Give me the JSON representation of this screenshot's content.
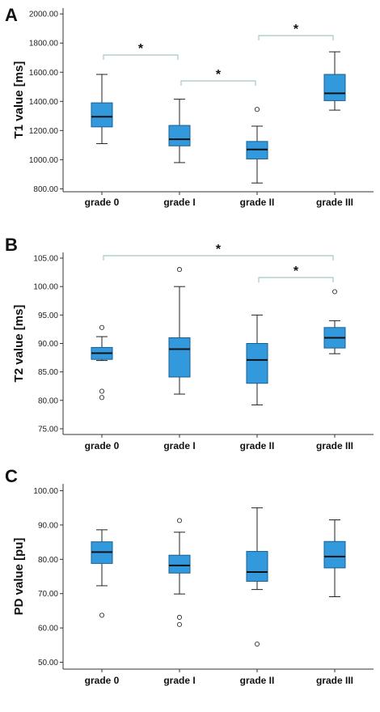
{
  "chart_data": [
    {
      "type": "box",
      "panel_letter": "A",
      "ylabel": "T1 value [ms]",
      "ylim": [
        780,
        2040
      ],
      "yticks": [
        "800.00",
        "1000.00",
        "1200.00",
        "1400.00",
        "1600.00",
        "1800.00",
        "2000.00"
      ],
      "categories": [
        "grade 0",
        "grade I",
        "grade II",
        "grade III"
      ],
      "box_color": "#3399dd",
      "bracket_color": "#9fc8c8",
      "boxes": [
        {
          "whisker_low": 1110,
          "q1": 1225,
          "median": 1295,
          "q3": 1390,
          "whisker_high": 1585,
          "outliers": []
        },
        {
          "whisker_low": 980,
          "q1": 1095,
          "median": 1140,
          "q3": 1235,
          "whisker_high": 1415,
          "outliers": []
        },
        {
          "whisker_low": 840,
          "q1": 1005,
          "median": 1070,
          "q3": 1125,
          "whisker_high": 1230,
          "outliers": [
            1345
          ]
        },
        {
          "whisker_low": 1340,
          "q1": 1405,
          "median": 1455,
          "q3": 1585,
          "whisker_high": 1740,
          "outliers": []
        }
      ],
      "significance": [
        {
          "from": 0,
          "to": 1,
          "label": "*"
        },
        {
          "from": 1,
          "to": 2,
          "label": "*"
        },
        {
          "from": 2,
          "to": 3,
          "label": "*"
        }
      ]
    },
    {
      "type": "box",
      "panel_letter": "B",
      "ylabel": "T2 value [ms]",
      "ylim": [
        74,
        106
      ],
      "yticks": [
        "75.00",
        "80.00",
        "85.00",
        "90.00",
        "95.00",
        "100.00",
        "105.00"
      ],
      "categories": [
        "grade 0",
        "grade I",
        "grade II",
        "grade III"
      ],
      "box_color": "#3399dd",
      "bracket_color": "#9fc8c8",
      "boxes": [
        {
          "whisker_low": 87.0,
          "q1": 87.2,
          "median": 88.3,
          "q3": 89.3,
          "whisker_high": 91.2,
          "outliers": [
            92.8,
            81.6,
            80.5
          ]
        },
        {
          "whisker_low": 81.1,
          "q1": 84.1,
          "median": 89.0,
          "q3": 91.0,
          "whisker_high": 100.0,
          "outliers": [
            103.0
          ]
        },
        {
          "whisker_low": 79.2,
          "q1": 83.0,
          "median": 87.1,
          "q3": 90.0,
          "whisker_high": 95.0,
          "outliers": []
        },
        {
          "whisker_low": 88.2,
          "q1": 89.2,
          "median": 91.0,
          "q3": 92.8,
          "whisker_high": 94.0,
          "outliers": [
            99.1
          ]
        }
      ],
      "significance": [
        {
          "from": 0,
          "to": 3,
          "label": "*"
        },
        {
          "from": 2,
          "to": 3,
          "label": "*"
        }
      ]
    },
    {
      "type": "box",
      "panel_letter": "C",
      "ylabel": "PD value [pu]",
      "ylim": [
        48,
        102
      ],
      "yticks": [
        "50.00",
        "60.00",
        "70.00",
        "80.00",
        "90.00",
        "100.00"
      ],
      "categories": [
        "grade 0",
        "grade I",
        "grade II",
        "grade III"
      ],
      "box_color": "#3399dd",
      "bracket_color": "#9fc8c8",
      "boxes": [
        {
          "whisker_low": 72.3,
          "q1": 78.8,
          "median": 82.1,
          "q3": 85.1,
          "whisker_high": 88.6,
          "outliers": [
            63.7
          ]
        },
        {
          "whisker_low": 69.9,
          "q1": 76.0,
          "median": 78.2,
          "q3": 81.2,
          "whisker_high": 87.9,
          "outliers": [
            91.3,
            63.1,
            61.0
          ]
        },
        {
          "whisker_low": 71.2,
          "q1": 73.6,
          "median": 76.3,
          "q3": 82.3,
          "whisker_high": 95.0,
          "outliers": [
            55.3
          ]
        },
        {
          "whisker_low": 69.1,
          "q1": 77.5,
          "median": 80.8,
          "q3": 85.2,
          "whisker_high": 91.5,
          "outliers": []
        }
      ],
      "significance": []
    }
  ]
}
